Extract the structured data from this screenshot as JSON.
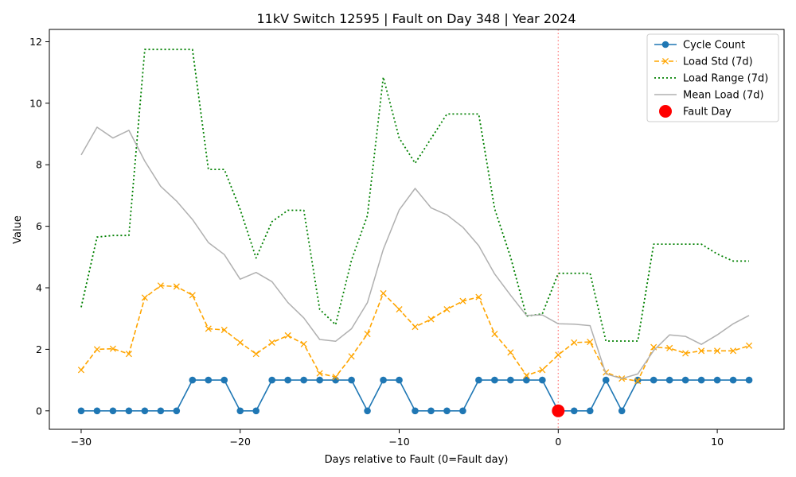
{
  "chart_data": {
    "type": "line",
    "title": "11kV Switch 12595 | Fault on Day 348 | Year 2024",
    "xlabel": "Days relative to Fault (0=Fault day)",
    "ylabel": "Value",
    "xlim": [
      -32,
      14.2
    ],
    "ylim": [
      -0.6,
      12.4
    ],
    "xticks": [
      -30,
      -20,
      -10,
      0,
      10
    ],
    "xtick_labels": [
      "−30",
      "−20",
      "−10",
      "0",
      "10"
    ],
    "yticks": [
      0,
      2,
      4,
      6,
      8,
      10,
      12
    ],
    "ytick_labels": [
      "0",
      "2",
      "4",
      "6",
      "8",
      "10",
      "12"
    ],
    "grid": false,
    "legend_position": "top-right",
    "fault_line_x": 0,
    "x": [
      -30,
      -29,
      -28,
      -27,
      -26,
      -25,
      -24,
      -23,
      -22,
      -21,
      -20,
      -19,
      -18,
      -17,
      -16,
      -15,
      -14,
      -13,
      -12,
      -11,
      -10,
      -9,
      -8,
      -7,
      -6,
      -5,
      -4,
      -3,
      -2,
      -1,
      0,
      1,
      2,
      3,
      4,
      5,
      6,
      7,
      8,
      9,
      10,
      11,
      12
    ],
    "series": [
      {
        "name": "Cycle Count",
        "color": "#1f77b4",
        "style": "solid-circle",
        "values": [
          0,
          0,
          0,
          0,
          0,
          0,
          0,
          1,
          1,
          1,
          0,
          0,
          1,
          1,
          1,
          1,
          1,
          1,
          0,
          1,
          1,
          0,
          0,
          0,
          0,
          1,
          1,
          1,
          1,
          1,
          0,
          0,
          0,
          1,
          0,
          1,
          1,
          1,
          1,
          1,
          1,
          1,
          1
        ]
      },
      {
        "name": "Load Std (7d)",
        "color": "#ffa500",
        "style": "dashed-x",
        "values": [
          1.33,
          2.0,
          2.02,
          1.85,
          3.68,
          4.07,
          4.04,
          3.76,
          2.67,
          2.63,
          2.22,
          1.85,
          2.22,
          2.45,
          2.17,
          1.22,
          1.1,
          1.77,
          2.5,
          3.82,
          3.3,
          2.73,
          2.98,
          3.3,
          3.57,
          3.7,
          2.5,
          1.9,
          1.15,
          1.33,
          1.82,
          2.22,
          2.24,
          1.25,
          1.05,
          0.97,
          2.07,
          2.04,
          1.87,
          1.95,
          1.95,
          1.95,
          2.12
        ]
      },
      {
        "name": "Load Range (7d)",
        "color": "#008000",
        "style": "dotted",
        "values": [
          3.37,
          5.65,
          5.7,
          5.7,
          11.75,
          11.75,
          11.75,
          11.75,
          7.85,
          7.85,
          6.55,
          4.97,
          6.15,
          6.52,
          6.52,
          3.3,
          2.8,
          4.9,
          6.35,
          10.85,
          8.87,
          8.05,
          8.85,
          9.65,
          9.65,
          9.65,
          6.57,
          5.0,
          3.08,
          3.15,
          4.47,
          4.47,
          4.47,
          2.27,
          2.27,
          2.27,
          5.42,
          5.42,
          5.42,
          5.42,
          5.1,
          4.87,
          4.87
        ]
      },
      {
        "name": "Mean Load (7d)",
        "color": "#b0b0b0",
        "style": "solid",
        "values": [
          8.32,
          9.22,
          8.87,
          9.12,
          8.12,
          7.3,
          6.82,
          6.22,
          5.47,
          5.08,
          4.28,
          4.5,
          4.2,
          3.52,
          3.02,
          2.32,
          2.26,
          2.67,
          3.52,
          5.25,
          6.53,
          7.23,
          6.6,
          6.37,
          5.97,
          5.37,
          4.45,
          3.76,
          3.1,
          3.12,
          2.83,
          2.82,
          2.77,
          1.2,
          1.05,
          1.2,
          1.96,
          2.47,
          2.42,
          2.16,
          2.47,
          2.83,
          3.1
        ]
      },
      {
        "name": "Fault Day",
        "color": "#ff0000",
        "style": "marker-only",
        "x": [
          0
        ],
        "values": [
          0
        ]
      }
    ]
  }
}
